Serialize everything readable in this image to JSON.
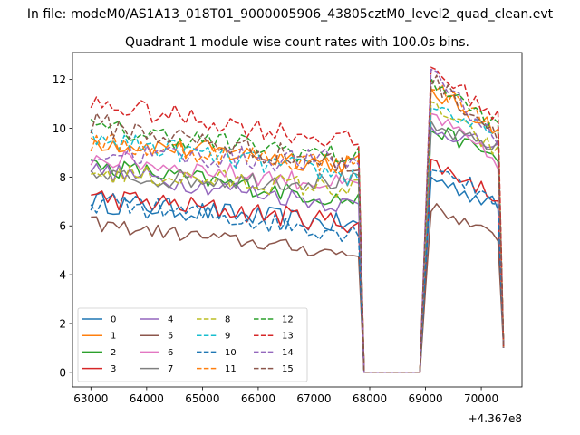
{
  "figure": {
    "suptitle": "In file: modeM0/AS1A13_018T01_9000005906_43805cztM0_level2_quad_clean.evt"
  },
  "chart_data": {
    "type": "line",
    "title": "Quadrant 1 module wise count rates with 100.0s bins.",
    "xlabel": "",
    "ylabel": "",
    "x_offset_label": "+4.367e8",
    "xlim": [
      62670,
      70730
    ],
    "ylim": [
      -0.6,
      13.1
    ],
    "grid": false,
    "legend_placement": "lower-left",
    "legend_columns": 4,
    "x_ticks": [
      63000,
      64000,
      65000,
      66000,
      67000,
      68000,
      69000,
      70000
    ],
    "y_ticks": [
      0,
      2,
      4,
      6,
      8,
      10,
      12
    ],
    "segments": [
      {
        "x_start": 63000,
        "x_end": 67800
      },
      {
        "x_start": 67900,
        "x_end": 68900
      },
      {
        "x_start": 69000,
        "x_end": 70400
      }
    ],
    "series": [
      {
        "name": "0",
        "color": "#1f77b4",
        "dash": "solid",
        "high_start": 7.0,
        "high_end": 6.0,
        "seg3_peak": 8.0,
        "seg3_end": 6.8,
        "jitter": 0.45
      },
      {
        "name": "1",
        "color": "#ff7f0e",
        "dash": "solid",
        "high_start": 9.5,
        "high_end": 8.5,
        "seg3_peak": 11.5,
        "seg3_end": 10.0,
        "jitter": 0.45
      },
      {
        "name": "2",
        "color": "#2ca02c",
        "dash": "solid",
        "high_start": 8.5,
        "high_end": 7.0,
        "seg3_peak": 10.0,
        "seg3_end": 8.8,
        "jitter": 0.4
      },
      {
        "name": "3",
        "color": "#d62728",
        "dash": "solid",
        "high_start": 7.2,
        "high_end": 6.1,
        "seg3_peak": 8.6,
        "seg3_end": 7.2,
        "jitter": 0.45
      },
      {
        "name": "4",
        "color": "#9467bd",
        "dash": "solid",
        "high_start": 8.3,
        "high_end": 6.8,
        "seg3_peak": 10.0,
        "seg3_end": 9.2,
        "jitter": 0.4
      },
      {
        "name": "5",
        "color": "#8c564b",
        "dash": "solid",
        "high_start": 6.1,
        "high_end": 4.8,
        "seg3_peak": 6.8,
        "seg3_end": 5.5,
        "jitter": 0.3
      },
      {
        "name": "6",
        "color": "#e377c2",
        "dash": "solid",
        "high_start": 8.8,
        "high_end": 7.6,
        "seg3_peak": 10.6,
        "seg3_end": 8.6,
        "jitter": 0.4
      },
      {
        "name": "7",
        "color": "#7f7f7f",
        "dash": "solid",
        "high_start": 8.0,
        "high_end": 7.8,
        "seg3_peak": 10.0,
        "seg3_end": 9.2,
        "jitter": 0.4
      },
      {
        "name": "8",
        "color": "#bcbd22",
        "dash": "dashed",
        "high_start": 8.2,
        "high_end": 7.5,
        "seg3_peak": 11.0,
        "seg3_end": 9.0,
        "jitter": 0.45
      },
      {
        "name": "9",
        "color": "#17becf",
        "dash": "dashed",
        "high_start": 9.6,
        "high_end": 8.0,
        "seg3_peak": 11.0,
        "seg3_end": 9.6,
        "jitter": 0.45
      },
      {
        "name": "10",
        "color": "#1f77b4",
        "dash": "dashed",
        "high_start": 7.0,
        "high_end": 5.7,
        "seg3_peak": 8.6,
        "seg3_end": 7.0,
        "jitter": 0.45
      },
      {
        "name": "11",
        "color": "#ff7f0e",
        "dash": "dashed",
        "high_start": 9.4,
        "high_end": 8.5,
        "seg3_peak": 11.8,
        "seg3_end": 10.0,
        "jitter": 0.45
      },
      {
        "name": "12",
        "color": "#2ca02c",
        "dash": "dashed",
        "high_start": 10.0,
        "high_end": 8.8,
        "seg3_peak": 12.0,
        "seg3_end": 10.0,
        "jitter": 0.45
      },
      {
        "name": "13",
        "color": "#d62728",
        "dash": "dashed",
        "high_start": 11.0,
        "high_end": 9.4,
        "seg3_peak": 12.5,
        "seg3_end": 10.4,
        "jitter": 0.45
      },
      {
        "name": "14",
        "color": "#9467bd",
        "dash": "dashed",
        "high_start": 9.0,
        "high_end": 8.6,
        "seg3_peak": 12.5,
        "seg3_end": 9.4,
        "jitter": 0.5
      },
      {
        "name": "15",
        "color": "#8c564b",
        "dash": "dashed",
        "high_start": 10.2,
        "high_end": 8.4,
        "seg3_peak": 12.0,
        "seg3_end": 9.8,
        "jitter": 0.5
      }
    ]
  }
}
